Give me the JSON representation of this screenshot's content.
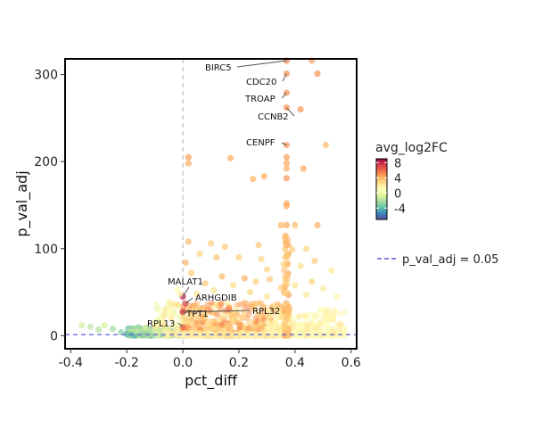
{
  "chart_data": {
    "type": "scatter",
    "xlabel": "pct_diff",
    "ylabel": "p_val_adj",
    "xlim": [
      -0.42,
      0.62
    ],
    "ylim": [
      -15,
      318
    ],
    "x_ticks": [
      -0.4,
      -0.2,
      0.0,
      0.2,
      0.4,
      0.6
    ],
    "x_tick_labels": [
      "-0.4",
      "-0.2",
      "0.0",
      "0.2",
      "0.4",
      "0.6"
    ],
    "y_ticks": [
      0,
      100,
      200,
      300
    ],
    "y_tick_labels": [
      "0",
      "100",
      "200",
      "300"
    ],
    "vertical_reference_x": 0.0,
    "threshold_line": {
      "label": "p_val_adj = 0.05",
      "y": 1.3,
      "color": "#5b5bd6"
    },
    "color_legend": {
      "title": "avg_log2FC",
      "range": [
        -7,
        9
      ],
      "ticks": [
        8,
        4,
        0,
        -4
      ],
      "tick_labels": [
        "8",
        "4",
        "0",
        "-4"
      ],
      "gradient": [
        "#5e4fa2",
        "#3288bd",
        "#66c2a5",
        "#abdda4",
        "#e6f598",
        "#ffffbf",
        "#fee08b",
        "#fdae61",
        "#f46d43",
        "#d53e4f",
        "#9e0142"
      ]
    },
    "labeled_genes": [
      {
        "label": "BIRC5",
        "x": 0.37,
        "y": 316,
        "fc": 5.2
      },
      {
        "label": "CDC20",
        "x": 0.37,
        "y": 301,
        "fc": 5.0
      },
      {
        "label": "TROAP",
        "x": 0.37,
        "y": 279,
        "fc": 5.0
      },
      {
        "label": "CCNB2",
        "x": 0.37,
        "y": 262,
        "fc": 5.0
      },
      {
        "label": "CENPF",
        "x": 0.37,
        "y": 219,
        "fc": 4.8
      },
      {
        "label": "MALAT1",
        "x": 0.0,
        "y": 45,
        "fc": 8.2
      },
      {
        "label": "ARHGDIB",
        "x": 0.01,
        "y": 37,
        "fc": 7.0
      },
      {
        "label": "TPT1",
        "x": 0.0,
        "y": 28,
        "fc": 6.5
      },
      {
        "label": "RPL32",
        "x": 0.0,
        "y": 27,
        "fc": 6.8
      },
      {
        "label": "RPL13",
        "x": 0.0,
        "y": 10,
        "fc": 6.0
      }
    ],
    "points": [
      {
        "x": 0.37,
        "y": 316,
        "fc": 5.2
      },
      {
        "x": 0.46,
        "y": 316,
        "fc": 4.6
      },
      {
        "x": 0.37,
        "y": 301,
        "fc": 5.0
      },
      {
        "x": 0.48,
        "y": 301,
        "fc": 4.9
      },
      {
        "x": 0.37,
        "y": 279,
        "fc": 5.0
      },
      {
        "x": 0.37,
        "y": 262,
        "fc": 5.0
      },
      {
        "x": 0.42,
        "y": 260,
        "fc": 4.8
      },
      {
        "x": 0.37,
        "y": 219,
        "fc": 4.8
      },
      {
        "x": 0.51,
        "y": 219,
        "fc": 3.8
      },
      {
        "x": 0.02,
        "y": 205,
        "fc": 4.6
      },
      {
        "x": 0.02,
        "y": 198,
        "fc": 4.2
      },
      {
        "x": 0.37,
        "y": 205,
        "fc": 4.6
      },
      {
        "x": 0.37,
        "y": 198,
        "fc": 4.4
      },
      {
        "x": 0.37,
        "y": 192,
        "fc": 4.2
      },
      {
        "x": 0.43,
        "y": 192,
        "fc": 4.5
      },
      {
        "x": 0.17,
        "y": 204,
        "fc": 4.4
      },
      {
        "x": 0.25,
        "y": 180,
        "fc": 4.0
      },
      {
        "x": 0.29,
        "y": 183,
        "fc": 4.3
      },
      {
        "x": 0.37,
        "y": 181,
        "fc": 4.8
      },
      {
        "x": 0.37,
        "y": 152,
        "fc": 4.4
      },
      {
        "x": 0.37,
        "y": 149,
        "fc": 4.4
      },
      {
        "x": 0.37,
        "y": 127,
        "fc": 4.4
      },
      {
        "x": 0.48,
        "y": 127,
        "fc": 4.2
      },
      {
        "x": 0.35,
        "y": 127,
        "fc": 4.0
      },
      {
        "x": 0.4,
        "y": 127,
        "fc": 3.8
      },
      {
        "x": 0.02,
        "y": 108,
        "fc": 3.8
      },
      {
        "x": 0.1,
        "y": 106,
        "fc": 3.2
      },
      {
        "x": 0.37,
        "y": 108,
        "fc": 3.6
      },
      {
        "x": 0.37,
        "y": 104,
        "fc": 4.0
      },
      {
        "x": 0.15,
        "y": 102,
        "fc": 3.4
      },
      {
        "x": 0.27,
        "y": 104,
        "fc": 3.5
      },
      {
        "x": 0.39,
        "y": 99,
        "fc": 3.2
      },
      {
        "x": 0.44,
        "y": 100,
        "fc": 3.0
      },
      {
        "x": 0.01,
        "y": 84,
        "fc": 4.0
      },
      {
        "x": 0.06,
        "y": 94,
        "fc": 3.0
      },
      {
        "x": 0.12,
        "y": 90,
        "fc": 3.5
      },
      {
        "x": 0.2,
        "y": 90,
        "fc": 3.1
      },
      {
        "x": 0.28,
        "y": 88,
        "fc": 3.0
      },
      {
        "x": 0.37,
        "y": 92,
        "fc": 3.4
      },
      {
        "x": 0.47,
        "y": 86,
        "fc": 3.2
      },
      {
        "x": 0.3,
        "y": 76,
        "fc": 3.0
      },
      {
        "x": 0.36,
        "y": 82,
        "fc": 3.1
      },
      {
        "x": 0.42,
        "y": 80,
        "fc": 2.6
      },
      {
        "x": 0.53,
        "y": 75,
        "fc": 2.2
      },
      {
        "x": 0.03,
        "y": 72,
        "fc": 3.4
      },
      {
        "x": 0.14,
        "y": 68,
        "fc": 3.8
      },
      {
        "x": 0.22,
        "y": 66,
        "fc": 4.0
      },
      {
        "x": 0.31,
        "y": 65,
        "fc": 3.4
      },
      {
        "x": 0.37,
        "y": 68,
        "fc": 3.6
      },
      {
        "x": 0.46,
        "y": 62,
        "fc": 3.0
      },
      {
        "x": 0.08,
        "y": 60,
        "fc": 3.3
      },
      {
        "x": 0.18,
        "y": 58,
        "fc": 2.8
      },
      {
        "x": 0.26,
        "y": 62,
        "fc": 3.2
      },
      {
        "x": 0.4,
        "y": 58,
        "fc": 2.4
      },
      {
        "x": 0.35,
        "y": 55,
        "fc": 3.0
      },
      {
        "x": 0.5,
        "y": 54,
        "fc": 2.0
      },
      {
        "x": 0.11,
        "y": 52,
        "fc": 2.6
      },
      {
        "x": 0.24,
        "y": 50,
        "fc": 2.8
      },
      {
        "x": 0.37,
        "y": 50,
        "fc": 3.2
      },
      {
        "x": 0.44,
        "y": 47,
        "fc": 2.2
      },
      {
        "x": 0.05,
        "y": 48,
        "fc": 2.4
      },
      {
        "x": 0.3,
        "y": 45,
        "fc": 2.5
      },
      {
        "x": 0.55,
        "y": 45,
        "fc": 1.6
      },
      {
        "x": 0.0,
        "y": 45,
        "fc": 8.2
      },
      {
        "x": 0.01,
        "y": 37,
        "fc": 7.0
      },
      {
        "x": 0.0,
        "y": 28,
        "fc": 6.5
      },
      {
        "x": 0.0,
        "y": 27,
        "fc": 6.8
      },
      {
        "x": 0.0,
        "y": 10,
        "fc": 6.0
      },
      {
        "x": -0.01,
        "y": 48,
        "fc": 1.8
      },
      {
        "x": -0.02,
        "y": 53,
        "fc": 1.0
      },
      {
        "x": -0.05,
        "y": 27,
        "fc": 1.2
      },
      {
        "x": -0.08,
        "y": 22,
        "fc": 0.8
      },
      {
        "x": -0.36,
        "y": 12,
        "fc": -1.2
      },
      {
        "x": -0.33,
        "y": 10,
        "fc": -1.6
      },
      {
        "x": -0.3,
        "y": 7,
        "fc": -2.0
      },
      {
        "x": -0.28,
        "y": 12,
        "fc": -1.0
      },
      {
        "x": -0.25,
        "y": 8,
        "fc": -2.4
      },
      {
        "x": -0.22,
        "y": 4,
        "fc": -3.0
      },
      {
        "x": -0.2,
        "y": 2,
        "fc": -4.0
      },
      {
        "x": -0.18,
        "y": 1,
        "fc": -3.6
      },
      {
        "x": -0.15,
        "y": 3,
        "fc": -2.6
      },
      {
        "x": -0.12,
        "y": 2,
        "fc": -2.2
      },
      {
        "x": -0.09,
        "y": 5,
        "fc": -1.4
      },
      {
        "x": -0.06,
        "y": 8,
        "fc": -0.6
      },
      {
        "x": -0.03,
        "y": 12,
        "fc": 0.2
      },
      {
        "x": -0.16,
        "y": 6,
        "fc": -1.8
      }
    ],
    "dense_clusters": [
      {
        "x_range": [
          -0.2,
          0.0
        ],
        "y_range": [
          0,
          10
        ],
        "fc_range": [
          -4.5,
          -0.5
        ],
        "count": 160
      },
      {
        "x_range": [
          -0.1,
          0.03
        ],
        "y_range": [
          0,
          40
        ],
        "fc_range": [
          -0.5,
          3.0
        ],
        "count": 110
      },
      {
        "x_range": [
          0.0,
          0.38
        ],
        "y_range": [
          0,
          38
        ],
        "fc_range": [
          2.0,
          5.5
        ],
        "count": 520
      },
      {
        "x_range": [
          0.3,
          0.58
        ],
        "y_range": [
          0,
          30
        ],
        "fc_range": [
          0.5,
          2.5
        ],
        "count": 300
      },
      {
        "x_range": [
          0.36,
          0.38
        ],
        "y_range": [
          0,
          115
        ],
        "fc_range": [
          2.5,
          4.5
        ],
        "count": 90
      },
      {
        "x_range": [
          0.0,
          0.3
        ],
        "y_range": [
          0,
          3
        ],
        "fc_range": [
          1.0,
          3.0
        ],
        "count": 200
      }
    ]
  }
}
